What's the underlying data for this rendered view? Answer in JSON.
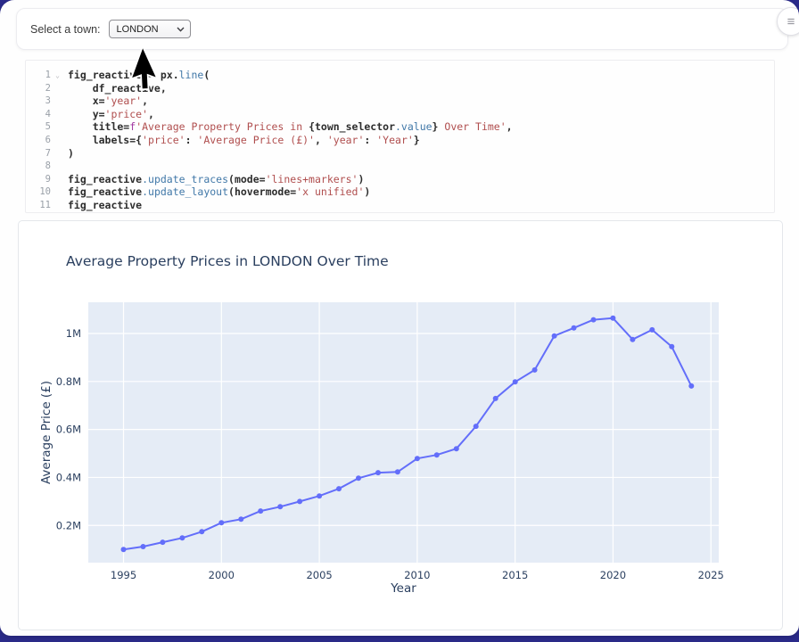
{
  "app": {
    "backdrop_color": "#2b2b8a",
    "icons": {
      "hamburger": "≡",
      "fold": "⌄"
    }
  },
  "topbar": {
    "label": "Select a town:",
    "select_value": "LONDON"
  },
  "code": {
    "lines": [
      {
        "num": "1",
        "fold": true,
        "tokens": [
          [
            "p",
            "fig_reactive = px."
          ],
          [
            "b",
            "line"
          ],
          [
            "p",
            "("
          ]
        ]
      },
      {
        "num": "2",
        "tokens": [
          [
            "p",
            "    df_reactive,"
          ]
        ]
      },
      {
        "num": "3",
        "tokens": [
          [
            "p",
            "    x="
          ],
          [
            "s",
            "'year'"
          ],
          [
            "p",
            ","
          ]
        ]
      },
      {
        "num": "4",
        "tokens": [
          [
            "p",
            "    y="
          ],
          [
            "s",
            "'price'"
          ],
          [
            "p",
            ","
          ]
        ]
      },
      {
        "num": "5",
        "tokens": [
          [
            "p",
            "    title="
          ],
          [
            "f",
            "f"
          ],
          [
            "s",
            "'Average Property Prices in "
          ],
          [
            "p",
            "{town_selector"
          ],
          [
            "b",
            ".value"
          ],
          [
            "p",
            "}"
          ],
          [
            "s",
            " Over Time'"
          ],
          [
            "p",
            ","
          ]
        ]
      },
      {
        "num": "6",
        "tokens": [
          [
            "p",
            "    labels={"
          ],
          [
            "s",
            "'price'"
          ],
          [
            "p",
            ": "
          ],
          [
            "s",
            "'Average Price (£)'"
          ],
          [
            "p",
            ", "
          ],
          [
            "s",
            "'year'"
          ],
          [
            "p",
            ": "
          ],
          [
            "s",
            "'Year'"
          ],
          [
            "p",
            "}"
          ]
        ]
      },
      {
        "num": "7",
        "tokens": [
          [
            "p",
            ")"
          ]
        ]
      },
      {
        "num": "8",
        "tokens": []
      },
      {
        "num": "9",
        "tokens": [
          [
            "p",
            "fig_reactive"
          ],
          [
            "b",
            ".update_traces"
          ],
          [
            "p",
            "(mode="
          ],
          [
            "s",
            "'lines+markers'"
          ],
          [
            "p",
            ")"
          ]
        ]
      },
      {
        "num": "10",
        "tokens": [
          [
            "p",
            "fig_reactive"
          ],
          [
            "b",
            ".update_layout"
          ],
          [
            "p",
            "(hovermode="
          ],
          [
            "s",
            "'x unified'"
          ],
          [
            "p",
            ")"
          ]
        ]
      },
      {
        "num": "11",
        "tokens": [
          [
            "p",
            "fig_reactive"
          ]
        ]
      }
    ]
  },
  "chart_data": {
    "type": "line",
    "title": "Average Property Prices in LONDON Over Time",
    "xlabel": "Year",
    "ylabel": "Average Price (£)",
    "mode": "lines+markers",
    "line_color": "#636efa",
    "plot_bg": "#e5ecf6",
    "grid_color": "#ffffff",
    "label_color": "#2a3f5f",
    "grid": true,
    "legend_position": "none",
    "x": [
      1995,
      1996,
      1997,
      1998,
      1999,
      2000,
      2001,
      2002,
      2003,
      2004,
      2005,
      2006,
      2007,
      2008,
      2009,
      2010,
      2011,
      2012,
      2013,
      2014,
      2015,
      2016,
      2017,
      2018,
      2019,
      2020,
      2021,
      2022,
      2023,
      2024
    ],
    "y": [
      100000,
      112000,
      130000,
      148000,
      174000,
      211000,
      226000,
      260000,
      278000,
      300000,
      323000,
      353000,
      397000,
      420000,
      423000,
      479000,
      494000,
      520000,
      613000,
      729000,
      798000,
      848000,
      990000,
      1023000,
      1057000,
      1064000,
      975000,
      1015000,
      945000,
      781000
    ],
    "xticks": [
      1995,
      2000,
      2005,
      2010,
      2015,
      2020,
      2025
    ],
    "yticks": [
      [
        200000,
        "0.2M"
      ],
      [
        400000,
        "0.4M"
      ],
      [
        600000,
        "0.6M"
      ],
      [
        800000,
        "0.8M"
      ],
      [
        1000000,
        "1M"
      ]
    ],
    "xlim": [
      1993.2,
      2025.4
    ],
    "ylim": [
      45000,
      1130000
    ]
  }
}
